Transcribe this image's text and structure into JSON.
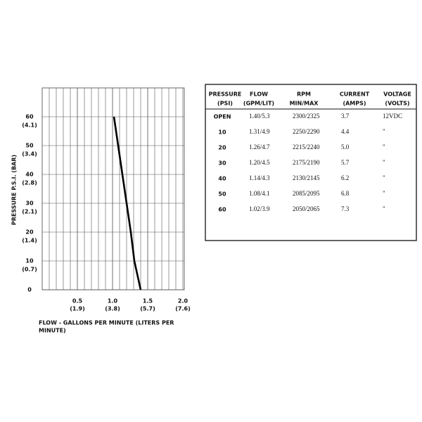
{
  "chart_data": {
    "type": "line",
    "ylabel": "PRESSURE  P.S.I.  (BAR)",
    "xlabel": [
      "FLOW - GALLONS PER MINUTE  (LITERS PER",
      "MINUTE)"
    ],
    "x": [
      1.4,
      1.31,
      1.26,
      1.2,
      1.14,
      1.08,
      1.02
    ],
    "series": [
      {
        "color": "#000000",
        "values": [
          0,
          10,
          20,
          30,
          40,
          50,
          60
        ]
      }
    ],
    "xlim": [
      0,
      2.0
    ],
    "ylim": [
      0,
      70
    ],
    "xticks": [
      {
        "value": 0.5,
        "label": "0.5",
        "label2": "(1.9)"
      },
      {
        "value": 1.0,
        "label": "1.0",
        "label2": "(3.8)"
      },
      {
        "value": 1.5,
        "label": "1.5",
        "label2": "(5.7)"
      },
      {
        "value": 2.0,
        "label": "2.0",
        "label2": "(7.6)"
      }
    ],
    "yticks": [
      0,
      {
        "value": 10,
        "label": "10",
        "label2": "(0.7)"
      },
      {
        "value": 20,
        "label": "20",
        "label2": "(1.4)"
      },
      {
        "value": 30,
        "label": "30",
        "label2": "(2.1)"
      },
      {
        "value": 40,
        "label": "40",
        "label2": "(2.8)"
      },
      {
        "value": 50,
        "label": "50",
        "label2": "(3.4)"
      },
      {
        "value": 60,
        "label": "60",
        "label2": "(4.1)"
      }
    ],
    "grid": true,
    "minor_xstep": 0.1
  },
  "table": {
    "header": [
      [
        "PRESSURE",
        "(PSI)"
      ],
      [
        "FLOW",
        "(GPM/LIT)"
      ],
      [
        "RPM",
        "MIN/MAX"
      ],
      [
        "CURRENT",
        "(AMPS)"
      ],
      [
        "VOLTAGE",
        "(VOLTS)"
      ]
    ],
    "rows": [
      [
        "OPEN",
        "1.40/5.3",
        "2300/2325",
        "3.7",
        "12VDC"
      ],
      [
        "10",
        "1.31/4.9",
        "2250/2290",
        "4.4",
        "\""
      ],
      [
        "20",
        "1.26/4.7",
        "2215/2240",
        "5.0",
        "\""
      ],
      [
        "30",
        "1.20/4.5",
        "2175/2190",
        "5.7",
        "\""
      ],
      [
        "40",
        "1.14/4.3",
        "2130/2145",
        "6.2",
        "\""
      ],
      [
        "50",
        "1.08/4.1",
        "2085/2095",
        "6.8",
        "\""
      ],
      [
        "60",
        "1.02/3.9",
        "2050/2065",
        "7.3",
        "\""
      ]
    ]
  }
}
